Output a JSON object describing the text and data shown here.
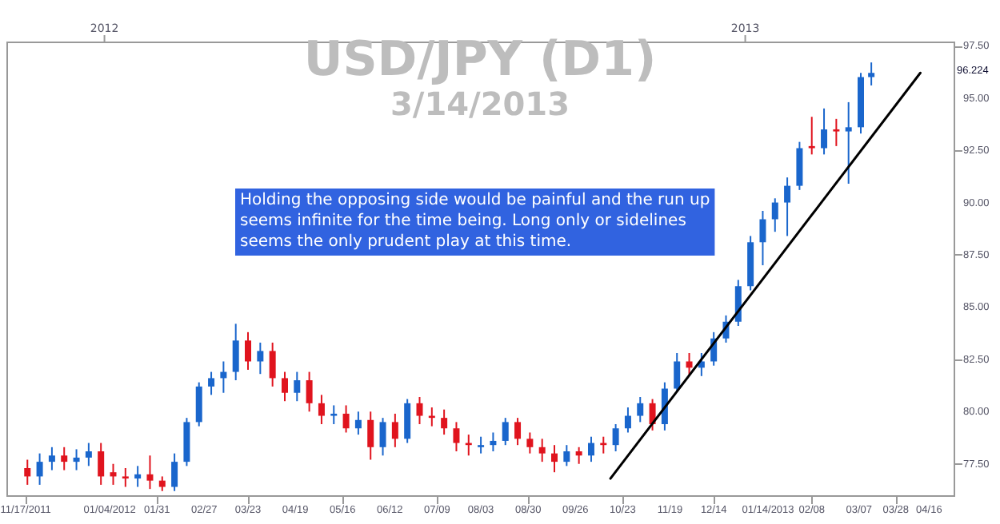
{
  "chart_data": {
    "type": "candlestick",
    "title": "USD/JPY (D1)",
    "subtitle": "3/14/2013",
    "annotations": [
      "Holding the opposing side would be painful and the run up seems infinite for the time being. Long only or sidelines seems the only prudent play at this time.",
      "96.224"
    ],
    "x": [
      "2011-11-18",
      "2011-11-25",
      "2011-12-02",
      "2011-12-09",
      "2011-12-16",
      "2011-12-23",
      "2011-12-30",
      "2012-01-06",
      "2012-01-13",
      "2012-01-20",
      "2012-01-27",
      "2012-02-03",
      "2012-02-10",
      "2012-02-17",
      "2012-02-24",
      "2012-03-02",
      "2012-03-09",
      "2012-03-16",
      "2012-03-23",
      "2012-03-30",
      "2012-04-06",
      "2012-04-13",
      "2012-04-20",
      "2012-04-27",
      "2012-05-04",
      "2012-05-11",
      "2012-05-18",
      "2012-05-25",
      "2012-06-01",
      "2012-06-08",
      "2012-06-15",
      "2012-06-22",
      "2012-06-29",
      "2012-07-06",
      "2012-07-13",
      "2012-07-20",
      "2012-07-27",
      "2012-08-03",
      "2012-08-10",
      "2012-08-17",
      "2012-08-24",
      "2012-08-31",
      "2012-09-07",
      "2012-09-14",
      "2012-09-21",
      "2012-09-28",
      "2012-10-05",
      "2012-10-12",
      "2012-10-19",
      "2012-10-26",
      "2012-11-02",
      "2012-11-09",
      "2012-11-16",
      "2012-11-23",
      "2012-11-30",
      "2012-12-07",
      "2012-12-14",
      "2012-12-21",
      "2012-12-28",
      "2013-01-04",
      "2013-01-11",
      "2013-01-18",
      "2013-01-25",
      "2013-02-01",
      "2013-02-08",
      "2013-02-15",
      "2013-02-22",
      "2013-03-01",
      "2013-03-08",
      "2013-03-14"
    ],
    "ohlc": [
      [
        77.3,
        77.7,
        76.5,
        76.9
      ],
      [
        76.9,
        78.0,
        76.5,
        77.6
      ],
      [
        77.6,
        78.3,
        77.2,
        77.9
      ],
      [
        77.9,
        78.3,
        77.2,
        77.6
      ],
      [
        77.6,
        78.2,
        77.2,
        77.8
      ],
      [
        77.8,
        78.5,
        77.4,
        78.1
      ],
      [
        78.1,
        78.5,
        76.5,
        76.9
      ],
      [
        77.1,
        77.5,
        76.5,
        76.9
      ],
      [
        76.9,
        77.3,
        76.4,
        76.8
      ],
      [
        76.8,
        77.4,
        76.4,
        77.0
      ],
      [
        77.0,
        77.9,
        76.3,
        76.7
      ],
      [
        76.7,
        76.9,
        76.2,
        76.4
      ],
      [
        76.4,
        78.0,
        76.2,
        77.6
      ],
      [
        77.6,
        79.7,
        77.4,
        79.5
      ],
      [
        79.5,
        81.4,
        79.3,
        81.2
      ],
      [
        81.2,
        81.9,
        80.8,
        81.6
      ],
      [
        81.6,
        82.4,
        80.9,
        81.9
      ],
      [
        81.9,
        84.2,
        81.5,
        83.4
      ],
      [
        83.4,
        83.8,
        82.0,
        82.4
      ],
      [
        82.4,
        83.3,
        81.8,
        82.9
      ],
      [
        82.9,
        83.3,
        81.2,
        81.6
      ],
      [
        81.6,
        81.9,
        80.5,
        80.9
      ],
      [
        80.9,
        81.9,
        80.5,
        81.5
      ],
      [
        81.5,
        81.9,
        80.0,
        80.4
      ],
      [
        80.4,
        80.8,
        79.4,
        79.8
      ],
      [
        79.8,
        80.3,
        79.4,
        79.9
      ],
      [
        79.9,
        80.3,
        79.0,
        79.2
      ],
      [
        79.2,
        80.0,
        78.9,
        79.6
      ],
      [
        79.6,
        80.0,
        77.7,
        78.3
      ],
      [
        78.3,
        79.7,
        77.9,
        79.5
      ],
      [
        79.5,
        79.9,
        78.3,
        78.7
      ],
      [
        78.7,
        80.6,
        78.5,
        80.4
      ],
      [
        80.4,
        80.7,
        79.4,
        79.8
      ],
      [
        79.8,
        80.2,
        79.3,
        79.7
      ],
      [
        79.7,
        80.1,
        78.9,
        79.2
      ],
      [
        79.2,
        79.5,
        78.1,
        78.5
      ],
      [
        78.5,
        78.9,
        77.9,
        78.4
      ],
      [
        78.3,
        78.8,
        78.0,
        78.4
      ],
      [
        78.4,
        79.0,
        78.1,
        78.6
      ],
      [
        78.6,
        79.7,
        78.4,
        79.5
      ],
      [
        79.5,
        79.7,
        78.4,
        78.7
      ],
      [
        78.7,
        79.0,
        78.0,
        78.3
      ],
      [
        78.3,
        78.7,
        77.6,
        78.0
      ],
      [
        78.0,
        78.4,
        77.1,
        77.6
      ],
      [
        77.6,
        78.4,
        77.4,
        78.1
      ],
      [
        78.1,
        78.3,
        77.5,
        77.9
      ],
      [
        77.9,
        78.8,
        77.6,
        78.5
      ],
      [
        78.5,
        78.8,
        78.0,
        78.4
      ],
      [
        78.4,
        79.4,
        78.1,
        79.2
      ],
      [
        79.2,
        80.2,
        79.0,
        79.8
      ],
      [
        79.8,
        80.7,
        79.5,
        80.4
      ],
      [
        80.4,
        80.6,
        79.1,
        79.4
      ],
      [
        79.4,
        81.4,
        79.1,
        81.1
      ],
      [
        81.1,
        82.8,
        81.0,
        82.4
      ],
      [
        82.4,
        82.8,
        81.7,
        82.1
      ],
      [
        82.1,
        82.8,
        81.7,
        82.4
      ],
      [
        82.4,
        83.8,
        82.2,
        83.5
      ],
      [
        83.5,
        84.6,
        83.3,
        84.3
      ],
      [
        84.3,
        86.3,
        84.1,
        86.0
      ],
      [
        86.0,
        88.4,
        85.8,
        88.1
      ],
      [
        88.1,
        89.6,
        87.0,
        89.2
      ],
      [
        89.2,
        90.2,
        88.6,
        90.0
      ],
      [
        90.0,
        91.2,
        88.4,
        90.8
      ],
      [
        90.8,
        92.9,
        90.6,
        92.6
      ],
      [
        92.7,
        94.1,
        92.3,
        92.6
      ],
      [
        92.6,
        94.5,
        92.3,
        93.5
      ],
      [
        93.5,
        94.0,
        92.7,
        93.4
      ],
      [
        93.4,
        94.8,
        90.9,
        93.6
      ],
      [
        93.6,
        96.2,
        93.3,
        96.0
      ],
      [
        96.0,
        96.7,
        95.6,
        96.2
      ]
    ],
    "colors": [
      "#e0141e",
      "#1a66cc",
      "#1a66cc",
      "#e0141e",
      "#1a66cc",
      "#1a66cc",
      "#e0141e",
      "#e0141e",
      "#e0141e",
      "#1a66cc",
      "#e0141e",
      "#e0141e",
      "#1a66cc",
      "#1a66cc",
      "#1a66cc",
      "#1a66cc",
      "#1a66cc",
      "#1a66cc",
      "#e0141e",
      "#1a66cc",
      "#e0141e",
      "#e0141e",
      "#1a66cc",
      "#e0141e",
      "#e0141e",
      "#1a66cc",
      "#e0141e",
      "#1a66cc",
      "#e0141e",
      "#1a66cc",
      "#e0141e",
      "#1a66cc",
      "#e0141e",
      "#e0141e",
      "#e0141e",
      "#e0141e",
      "#e0141e",
      "#1a66cc",
      "#1a66cc",
      "#1a66cc",
      "#e0141e",
      "#e0141e",
      "#e0141e",
      "#e0141e",
      "#1a66cc",
      "#e0141e",
      "#1a66cc",
      "#e0141e",
      "#1a66cc",
      "#1a66cc",
      "#1a66cc",
      "#e0141e",
      "#1a66cc",
      "#1a66cc",
      "#e0141e",
      "#1a66cc",
      "#1a66cc",
      "#1a66cc",
      "#1a66cc",
      "#1a66cc",
      "#1a66cc",
      "#1a66cc",
      "#1a66cc",
      "#1a66cc",
      "#e0141e",
      "#1a66cc",
      "#e0141e",
      "#1a66cc",
      "#1a66cc",
      "#1a66cc"
    ],
    "series": [
      {
        "type": "line",
        "color": "#000000",
        "x": [
          "2012-10-16",
          "2013-04-11"
        ],
        "values": [
          76.8,
          96.2
        ]
      }
    ],
    "xlim": [
      "2011-11-06",
      "2013-04-30"
    ],
    "xticks": [
      {
        "value": "2011-11-17",
        "label": "11/17/2011"
      },
      {
        "value": "2012-01-04",
        "label": "01/04/2012"
      },
      {
        "value": "2012-01-31",
        "label": "01/31"
      },
      {
        "value": "2012-02-27",
        "label": "02/27"
      },
      {
        "value": "2012-03-23",
        "label": "03/23"
      },
      {
        "value": "2012-04-19",
        "label": "04/19"
      },
      {
        "value": "2012-05-16",
        "label": "05/16"
      },
      {
        "value": "2012-06-12",
        "label": "06/12"
      },
      {
        "value": "2012-07-09",
        "label": "07/09"
      },
      {
        "value": "2012-08-03",
        "label": "08/03"
      },
      {
        "value": "2012-08-30",
        "label": "08/30"
      },
      {
        "value": "2012-09-26",
        "label": "09/26"
      },
      {
        "value": "2012-10-23",
        "label": "10/23"
      },
      {
        "value": "2012-11-19",
        "label": "11/19"
      },
      {
        "value": "2012-12-14",
        "label": "12/14"
      },
      {
        "value": "2013-01-14",
        "label": "01/14/2013"
      },
      {
        "value": "2013-02-08",
        "label": "02/08"
      },
      {
        "value": "2013-03-07",
        "label": "03/07"
      },
      {
        "value": "2013-03-28",
        "label": "03/28"
      },
      {
        "value": "2013-04-16",
        "label": "04/16"
      }
    ],
    "x2lim": [
      "2011-11-06",
      "2013-04-30"
    ],
    "x2ticks": [
      {
        "value": "2012-01-01",
        "label": "2012"
      },
      {
        "value": "2013-01-01",
        "label": "2013"
      }
    ],
    "ylim": [
      76.0,
      97.7
    ],
    "yticks": [
      {
        "value": 77.5,
        "label": "77.50"
      },
      {
        "value": 80,
        "label": "80.00"
      },
      {
        "value": 82.5,
        "label": "82.50"
      },
      {
        "value": 85,
        "label": "85.00"
      },
      {
        "value": 87.5,
        "label": "87.50"
      },
      {
        "value": 90,
        "label": "90.00"
      },
      {
        "value": 92.5,
        "label": "92.50"
      },
      {
        "value": 95,
        "label": "95.00"
      },
      {
        "value": 97.5,
        "label": "97.50"
      }
    ],
    "grid": false
  }
}
